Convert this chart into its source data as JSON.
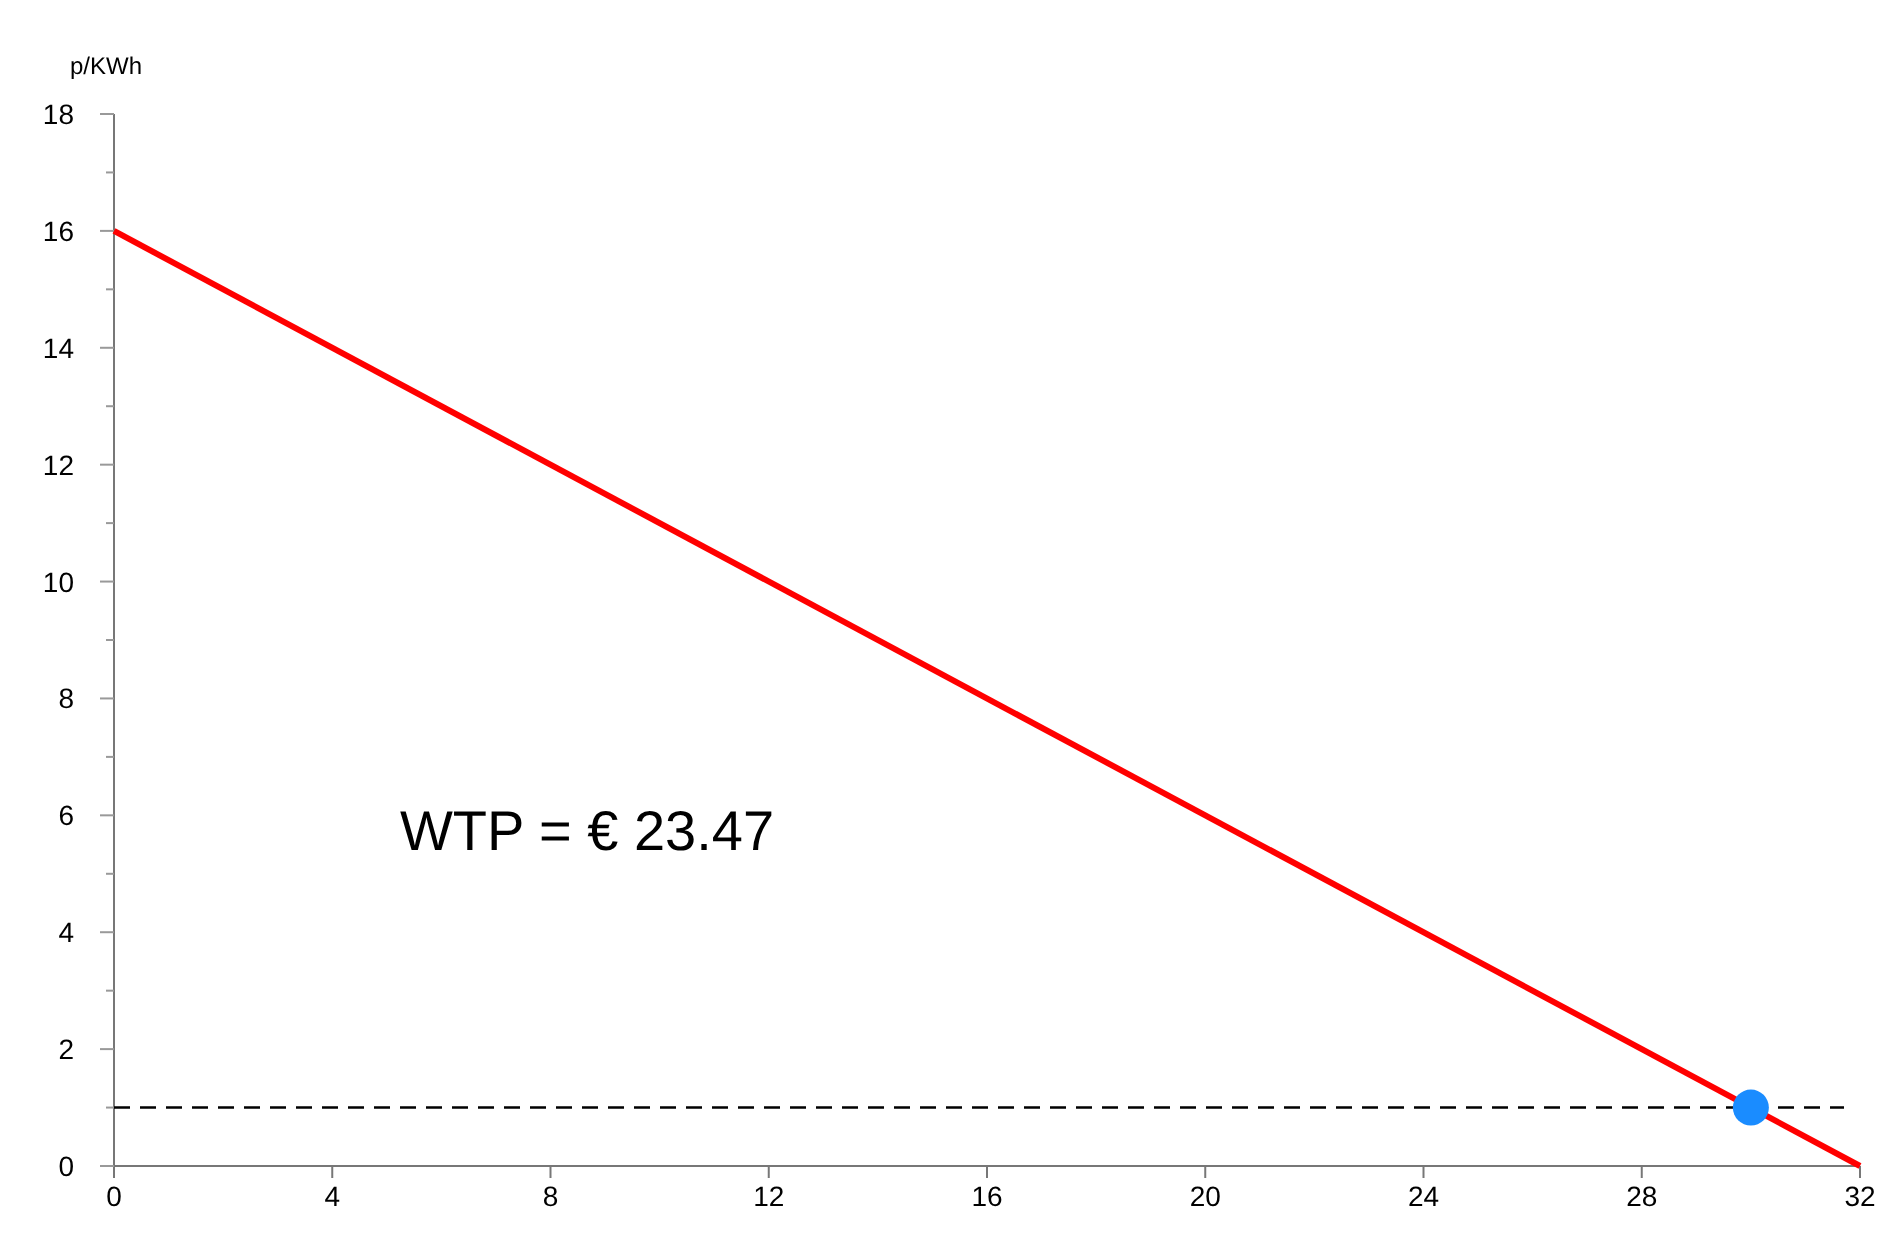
{
  "chart_data": {
    "type": "line",
    "ylabel": "p/KWh",
    "xlim": [
      0,
      32
    ],
    "ylim": [
      0,
      18
    ],
    "xticks": [
      0,
      4,
      8,
      12,
      16,
      20,
      24,
      28,
      32
    ],
    "yticks": [
      0,
      {
        "value": 1,
        "label": null
      },
      2,
      {
        "value": 3,
        "label": null
      },
      4,
      {
        "value": 5,
        "label": null
      },
      6,
      {
        "value": 7,
        "label": null
      },
      8,
      {
        "value": 9,
        "label": null
      },
      10,
      {
        "value": 11,
        "label": null
      },
      12,
      {
        "value": 13,
        "label": null
      },
      14,
      {
        "value": 15,
        "label": null
      },
      16,
      {
        "value": 17,
        "label": null
      },
      18
    ],
    "series": [
      {
        "type": "line",
        "color": "#ff0000",
        "x": [
          0,
          32
        ],
        "values": [
          16,
          0
        ],
        "marker": "none"
      },
      {
        "type": "scatter",
        "color": "#1a8cff",
        "x": [
          30
        ],
        "values": [
          1
        ],
        "marker": "circle"
      }
    ],
    "ref_lines": [
      {
        "axis": "y",
        "value": 1,
        "color": "#000000",
        "line_style": "dashed"
      }
    ],
    "annotations": [
      "WTP = € 23.47"
    ],
    "grid": false
  }
}
